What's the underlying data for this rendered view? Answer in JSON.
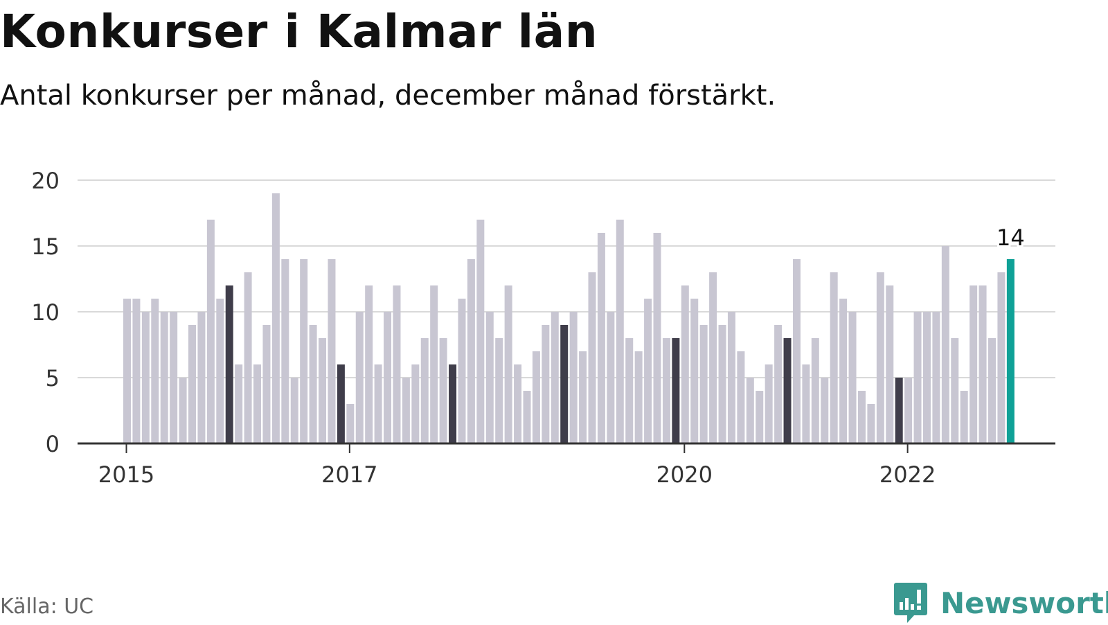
{
  "title": "Konkurser i Kalmar län",
  "subtitle": "Antal konkurser per månad, december månad förstärkt.",
  "source": "Källa: UC",
  "brand": "Newsworthy",
  "colors": {
    "bar": "#c8c6d2",
    "december": "#3f3d4a",
    "latest": "#0fa197",
    "grid": "#d9d9d9",
    "axis": "#333333",
    "brand": "#3a9990"
  },
  "icons": {
    "logo": "newsworthy-bar-chart-icon"
  },
  "chart_data": {
    "type": "bar",
    "start": "2015-01",
    "ylim": [
      0,
      20
    ],
    "yticks": [
      0,
      5,
      10,
      15,
      20
    ],
    "grid": true,
    "xticks": [
      "2015",
      "2017",
      "2020",
      "2022"
    ],
    "values": [
      11,
      11,
      10,
      11,
      10,
      10,
      5,
      9,
      10,
      17,
      11,
      12,
      6,
      13,
      6,
      9,
      19,
      14,
      5,
      14,
      9,
      8,
      14,
      6,
      3,
      10,
      12,
      6,
      10,
      12,
      5,
      6,
      8,
      12,
      8,
      6,
      11,
      14,
      17,
      10,
      8,
      12,
      6,
      4,
      7,
      9,
      10,
      9,
      10,
      7,
      13,
      16,
      10,
      17,
      8,
      7,
      11,
      16,
      8,
      8,
      12,
      11,
      9,
      13,
      9,
      10,
      7,
      5,
      4,
      6,
      9,
      8,
      14,
      6,
      8,
      5,
      13,
      11,
      10,
      4,
      3,
      13,
      12,
      5,
      5,
      10,
      10,
      10,
      15,
      8,
      4,
      12,
      12,
      8,
      13,
      14
    ],
    "highlight_month": "December",
    "latest_label": "14"
  }
}
